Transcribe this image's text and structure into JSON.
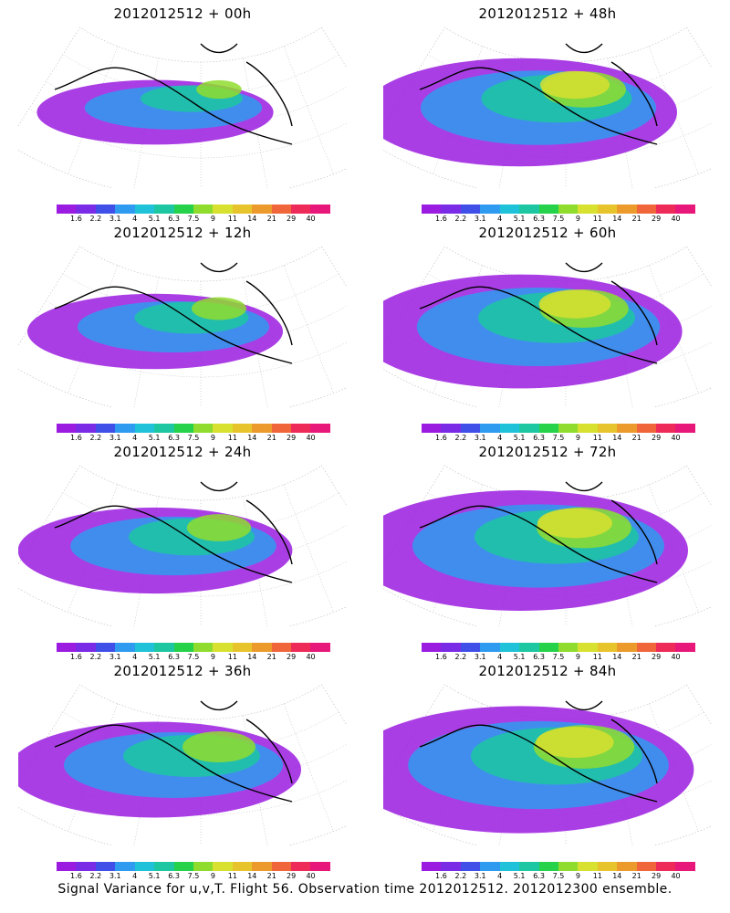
{
  "panels": [
    {
      "title": "2012012512  + 00h",
      "level": 0.12
    },
    {
      "title": "2012012512  + 48h",
      "level": 0.65
    },
    {
      "title": "2012012512  + 12h",
      "level": 0.25
    },
    {
      "title": "2012012512  + 60h",
      "level": 0.72
    },
    {
      "title": "2012012512  + 24h",
      "level": 0.38
    },
    {
      "title": "2012012512  + 72h",
      "level": 0.8
    },
    {
      "title": "2012012512  + 36h",
      "level": 0.5
    },
    {
      "title": "2012012512  + 84h",
      "level": 0.88
    }
  ],
  "colorbar": {
    "labels": [
      "1.6",
      "2.2",
      "3.1",
      "4",
      "5.1",
      "6.3",
      "7.5",
      "9",
      "11",
      "14",
      "21",
      "29",
      "40"
    ],
    "colors": [
      "#9b1ce0",
      "#7a2be6",
      "#3f4fe8",
      "#2f9bf0",
      "#1fc2d8",
      "#1cc7a2",
      "#25d24a",
      "#8fdc2e",
      "#d8e030",
      "#e8c42c",
      "#ec9a2c",
      "#f0663a",
      "#ee2a58",
      "#e8187a"
    ]
  },
  "footer": "Signal Variance for u,v,T. Flight 56. Observation time 2012012512. 2012012300 ensemble."
}
